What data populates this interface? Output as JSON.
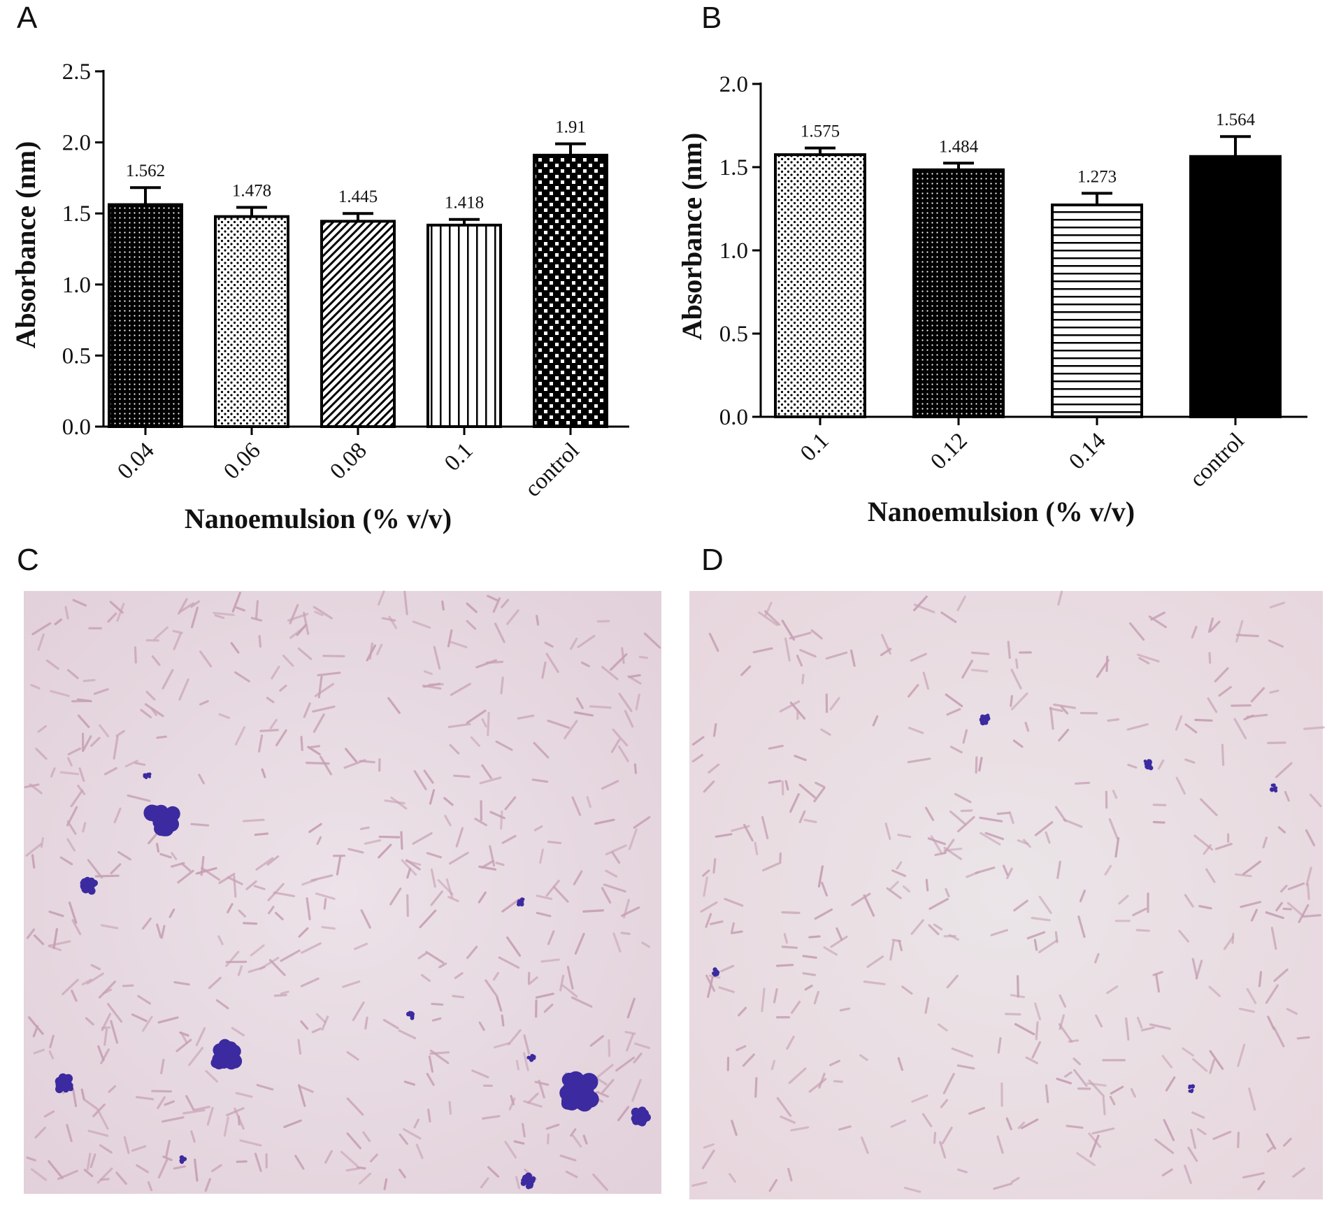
{
  "panels": {
    "a": {
      "letter": "A"
    },
    "b": {
      "letter": "B"
    },
    "c": {
      "letter": "C"
    },
    "d": {
      "letter": "D"
    }
  },
  "chart_data": [
    {
      "panel": "A",
      "type": "bar",
      "categories": [
        "0.04",
        "0.06",
        "0.08",
        "0.1",
        "control"
      ],
      "values": [
        1.562,
        1.478,
        1.445,
        1.418,
        1.91
      ],
      "value_labels": [
        "1.562",
        "1.478",
        "1.445",
        "1.418",
        "1.91"
      ],
      "errors": [
        0.12,
        0.065,
        0.055,
        0.04,
        0.08
      ],
      "bar_patterns": [
        "dense-dots",
        "dots",
        "diagonal",
        "vertical",
        "checker"
      ],
      "ylim": [
        0,
        2.5
      ],
      "yticks": [
        0,
        0.5,
        1.0,
        1.5,
        2.0,
        2.5
      ],
      "ytick_labels": [
        "0.0",
        "0.5",
        "1.0",
        "1.5",
        "2.0",
        "2.5"
      ],
      "xlabel": "Nanoemulsion (% v/v)",
      "ylabel": "Absorbance (nm)"
    },
    {
      "panel": "B",
      "type": "bar",
      "categories": [
        "0.1",
        "0.12",
        "0.14",
        "control"
      ],
      "values": [
        1.575,
        1.484,
        1.273,
        1.564
      ],
      "value_labels": [
        "1.575",
        "1.484",
        "1.273",
        "1.564"
      ],
      "errors": [
        0.04,
        0.04,
        0.07,
        0.12
      ],
      "bar_patterns": [
        "dots",
        "dense-dots",
        "horizontal",
        "solid"
      ],
      "ylim": [
        0,
        2.0
      ],
      "yticks": [
        0,
        0.5,
        1.0,
        1.5,
        2.0
      ],
      "ytick_labels": [
        "0.0",
        "0.5",
        "1.0",
        "1.5",
        "2.0"
      ],
      "xlabel": "Nanoemulsion (% v/v)",
      "ylabel": "Absorbance (nm)"
    }
  ],
  "colors": {
    "bar_stroke": "#000000",
    "slide_background": "#e9dbe2",
    "rod_cells": "#c7a1b4",
    "stained_clusters": "#3c2aa0"
  }
}
